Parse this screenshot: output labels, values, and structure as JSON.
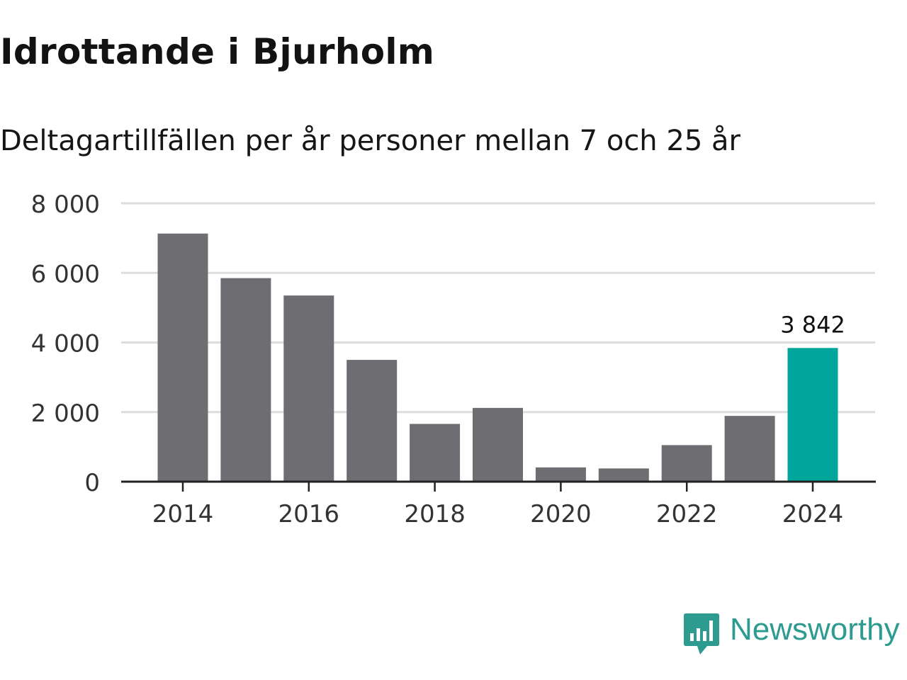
{
  "header": {
    "title": "Idrottande i Bjurholm",
    "subtitle": "Deltagartillfällen per år personer mellan 7 och 25 år"
  },
  "chart_data": {
    "type": "bar",
    "title": "Idrottande i Bjurholm",
    "subtitle": "Deltagartillfällen per år personer mellan 7 och 25 år",
    "xlabel": "",
    "ylabel": "",
    "categories": [
      "2014",
      "2015",
      "2016",
      "2017",
      "2018",
      "2019",
      "2020",
      "2021",
      "2022",
      "2023",
      "2024"
    ],
    "values": [
      7130,
      5850,
      5350,
      3500,
      1660,
      2120,
      410,
      380,
      1050,
      1890,
      3842
    ],
    "ylim": [
      0,
      8000
    ],
    "yticks": [
      0,
      2000,
      4000,
      6000,
      8000
    ],
    "ytick_labels": [
      "0",
      "2 000",
      "4 000",
      "6 000",
      "8 000"
    ],
    "xtick_labels": [
      "2014",
      "2016",
      "2018",
      "2020",
      "2022",
      "2024"
    ],
    "grid": true,
    "highlight_index": 10,
    "highlight_label": "3 842",
    "colors": {
      "bar": "#6e6d72",
      "highlight": "#00a59b",
      "grid": "#dddddd",
      "axis": "#222222",
      "tick_text": "#333333"
    }
  },
  "footer": {
    "brand": "Newsworthy",
    "brand_icon": "bar-chart-speech-bubble-icon",
    "brand_color": "#2d9b8f"
  }
}
